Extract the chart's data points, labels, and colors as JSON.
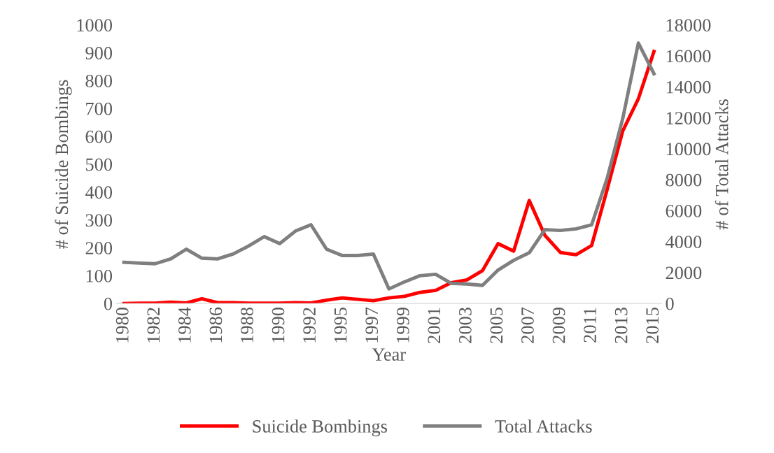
{
  "chart_data": {
    "type": "line",
    "xlabel": "Year",
    "ylabel": "# of Suicide Bombings",
    "y2label": "# of Total Attacks",
    "categories": [
      "1980",
      null,
      "1982",
      null,
      "1984",
      null,
      "1986",
      null,
      "1988",
      null,
      "1990",
      null,
      "1992",
      null,
      "1995",
      null,
      "1997",
      null,
      "1999",
      null,
      "2001",
      null,
      "2003",
      null,
      "2005",
      null,
      "2007",
      null,
      "2009",
      null,
      "2011",
      null,
      "2013",
      null,
      "2015"
    ],
    "series": [
      {
        "name": "Suicide Bombings",
        "color": "#ff0000",
        "values": [
          0,
          1,
          1,
          5,
          2,
          17,
          3,
          3,
          1,
          1,
          1,
          3,
          2,
          12,
          20,
          15,
          10,
          20,
          26,
          40,
          47,
          75,
          85,
          118,
          215,
          188,
          370,
          245,
          183,
          175,
          208,
          410,
          620,
          735,
          905
        ]
      },
      {
        "name": "Total Attacks",
        "color": "#7f7f7f",
        "axis": "y2",
        "values": [
          2660,
          2610,
          2570,
          2880,
          3510,
          2930,
          2880,
          3200,
          3720,
          4320,
          3870,
          4680,
          5090,
          3510,
          3100,
          3100,
          3200,
          940,
          1400,
          1800,
          1890,
          1300,
          1260,
          1170,
          2160,
          2790,
          3280,
          4770,
          4720,
          4820,
          5080,
          8100,
          11970,
          16830,
          14850
        ]
      }
    ],
    "ylim": [
      0,
      1000
    ],
    "yticks": [
      0,
      100,
      200,
      300,
      400,
      500,
      600,
      700,
      800,
      900,
      1000
    ],
    "y2lim": [
      0,
      18000
    ],
    "y2ticks": [
      0,
      2000,
      4000,
      6000,
      8000,
      10000,
      12000,
      14000,
      16000,
      18000
    ],
    "grid": false,
    "legend": "bottom",
    "marker": "none",
    "line_style": "solid"
  }
}
